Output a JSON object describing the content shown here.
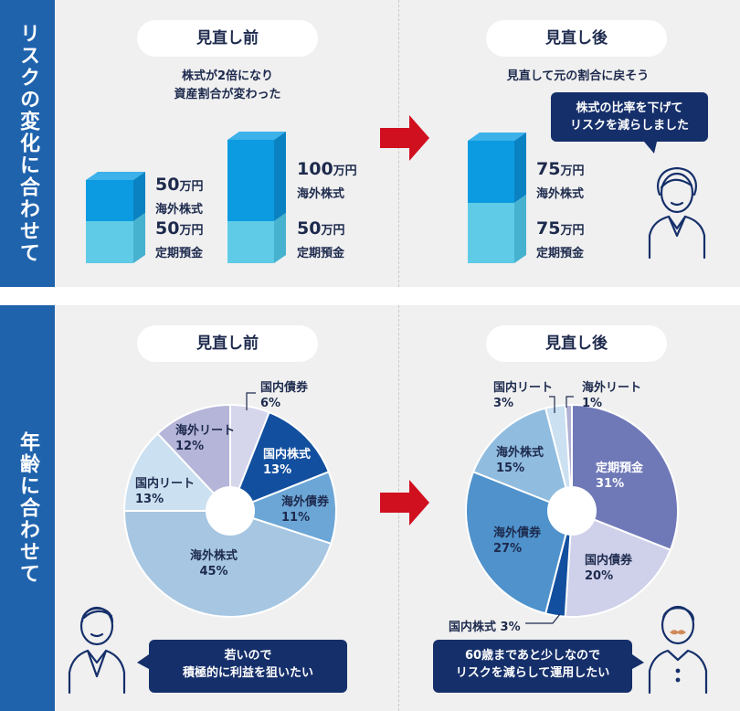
{
  "top": {
    "side_label": "リスクの変化に合わせて",
    "before": {
      "title": "見直し前",
      "desc": [
        "株式が2倍になり",
        "資産割合が変わった"
      ],
      "bar1": {
        "stock_amount": "50",
        "stock_label": "海外株式",
        "deposit_amount": "50",
        "deposit_label": "定期預金"
      },
      "bar2": {
        "stock_amount": "100",
        "stock_label": "海外株式",
        "deposit_amount": "50",
        "deposit_label": "定期預金"
      }
    },
    "after": {
      "title": "見直し後",
      "desc": "見直して元の割合に戻そう",
      "bar": {
        "stock_amount": "75",
        "stock_label": "海外株式",
        "deposit_amount": "75",
        "deposit_label": "定期預金"
      },
      "bubble": [
        "株式の比率を下げて",
        "リスクを減らしました"
      ]
    },
    "unit": "万円"
  },
  "bottom": {
    "side_label": "年齢に合わせて",
    "before": {
      "title": "見直し前",
      "bubble": [
        "若いので",
        "積極的に利益を狙いたい"
      ]
    },
    "after": {
      "title": "見直し後",
      "bubble": [
        "60歳まであと少しなので",
        "リスクを減らして運用したい"
      ]
    }
  },
  "colors": {
    "stock": "#0c9be0",
    "deposit": "#5fcbe6",
    "side": "#1f63ad",
    "arrow": "#d0101e",
    "navy": "#152f6a"
  },
  "chart_data": [
    {
      "type": "bar",
      "categories": [
        "見直し前",
        "見直し前",
        "見直し後"
      ],
      "series": [
        {
          "name": "定期預金",
          "values": [
            50,
            50,
            75
          ]
        },
        {
          "name": "海外株式",
          "values": [
            50,
            100,
            75
          ]
        }
      ],
      "title": ""
    },
    {
      "type": "pie",
      "title": "見直し前",
      "slices": [
        {
          "label": "国内債券",
          "value": 6,
          "display": "6%",
          "color": "#d5d5ec",
          "text_color": "#1d2a4d"
        },
        {
          "label": "国内株式",
          "value": 13,
          "display": "13%",
          "color": "#124f9e",
          "text_color": "#ffffff"
        },
        {
          "label": "海外債券",
          "value": 11,
          "display": "11%",
          "color": "#6ca6d6",
          "text_color": "#1d2a4d"
        },
        {
          "label": "海外株式",
          "value": 45,
          "display": "45%",
          "color": "#a6c6e2",
          "text_color": "#1d2a4d"
        },
        {
          "label": "国内リート",
          "value": 13,
          "display": "13%",
          "color": "#cbe0f1",
          "text_color": "#1d2a4d"
        },
        {
          "label": "海外リート",
          "value": 12,
          "display": "12%",
          "color": "#b5b5d9",
          "text_color": "#1d2a4d"
        }
      ]
    },
    {
      "type": "pie",
      "title": "見直し後",
      "slices": [
        {
          "label": "定期預金",
          "value": 31,
          "display": "31%",
          "color": "#6f79b8",
          "text_color": "#ffffff"
        },
        {
          "label": "国内債券",
          "value": 20,
          "display": "20%",
          "color": "#cfd0ea",
          "text_color": "#1d2a4d"
        },
        {
          "label": "国内株式",
          "value": 3,
          "display": "3%",
          "color": "#124f9e",
          "text_color": "#1d2a4d"
        },
        {
          "label": "海外債券",
          "value": 27,
          "display": "27%",
          "color": "#4f92cc",
          "text_color": "#1d2a4d"
        },
        {
          "label": "海外株式",
          "value": 15,
          "display": "15%",
          "color": "#90bcdf",
          "text_color": "#1d2a4d"
        },
        {
          "label": "国内リート",
          "value": 3,
          "display": "3%",
          "color": "#cbe0f1",
          "text_color": "#1d2a4d"
        },
        {
          "label": "海外リート",
          "value": 1,
          "display": "1%",
          "color": "#b0b0d5",
          "text_color": "#1d2a4d"
        }
      ]
    }
  ]
}
